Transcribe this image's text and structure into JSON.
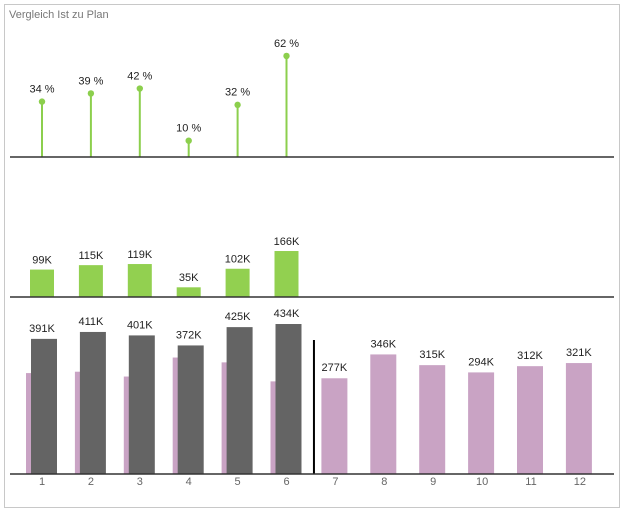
{
  "chart_data": [
    {
      "type": "lollipop",
      "title": "Vergleich Ist zu Plan",
      "values": [
        34,
        39,
        42,
        10,
        32,
        62
      ],
      "value_labels": [
        "34 %",
        "39 %",
        "42 %",
        "10 %",
        "32 %",
        "62 %"
      ],
      "color": "#8ccf4d"
    },
    {
      "type": "bar",
      "values": [
        99,
        115,
        119,
        35,
        102,
        166
      ],
      "value_labels": [
        "99K",
        "115K",
        "119K",
        "35K",
        "102K",
        "166K"
      ],
      "color": "#92d050"
    },
    {
      "type": "overlap_bar",
      "categories": [
        "1",
        "2",
        "3",
        "4",
        "5",
        "6",
        "7",
        "8",
        "9",
        "10",
        "11",
        "12"
      ],
      "series": [
        {
          "color": "#c9a3c4",
          "values": [
            292,
            296,
            282,
            337,
            323,
            268,
            277,
            346,
            315,
            294,
            312,
            321
          ],
          "value_labels": [
            null,
            null,
            null,
            null,
            null,
            null,
            "277K",
            "346K",
            "315K",
            "294K",
            "312K",
            "321K"
          ]
        },
        {
          "color": "#646464",
          "values": [
            391,
            411,
            401,
            372,
            425,
            434,
            null,
            null,
            null,
            null,
            null,
            null
          ],
          "value_labels": [
            "391K",
            "411K",
            "401K",
            "372K",
            "425K",
            "434K",
            null,
            null,
            null,
            null,
            null,
            null
          ]
        }
      ]
    }
  ]
}
